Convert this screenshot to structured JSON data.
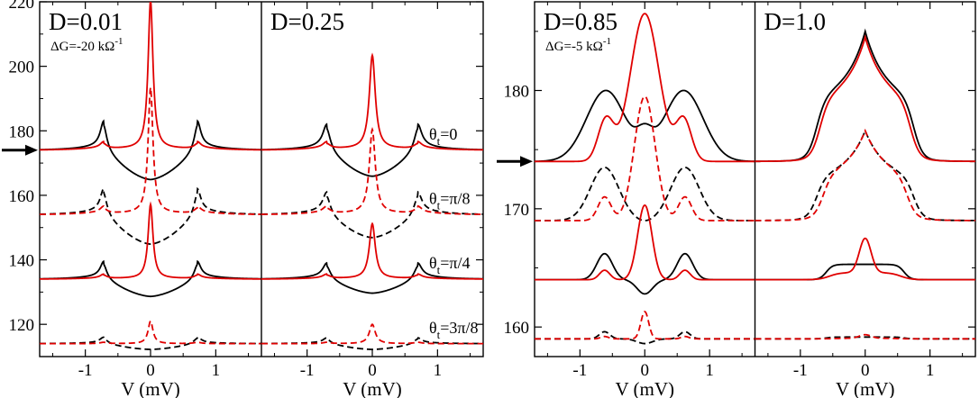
{
  "chart_data": [
    {
      "type": "line",
      "group": "left",
      "xlim": [
        -1.7,
        1.7
      ],
      "ylim": [
        110,
        220
      ],
      "xticks": [
        -1,
        0,
        1
      ],
      "xtick_labels": [
        "-1",
        "0",
        "1"
      ],
      "yticks": [
        120,
        140,
        160,
        180,
        200,
        220
      ],
      "ytick_labels": [
        "120",
        "140",
        "160",
        "180",
        "200",
        "220"
      ],
      "arrow_y": 174,
      "theta_labels": [
        {
          "base": "θ",
          "sub": "t",
          "rest": "=0",
          "y": 179
        },
        {
          "base": "θ",
          "sub": "t",
          "rest": "=π/8",
          "y": 159
        },
        {
          "base": "θ",
          "sub": "t",
          "rest": "=π/4",
          "y": 139
        },
        {
          "base": "θ",
          "sub": "t",
          "rest": "=3π/8",
          "y": 119
        }
      ],
      "panels": [
        {
          "title": "D=0.01",
          "annotation": {
            "prefix": "ΔG=-20 kΩ",
            "sup": "-1"
          },
          "xlabel": "V (mV)",
          "series": [
            {
              "name": "θt=0 black",
              "color": "#000000",
              "dash": false,
              "base": 174,
              "dip": -10,
              "peak": 7,
              "peak_pos": 0.72,
              "peak_w": 0.06,
              "zbp": 0,
              "zbp_w": 0.05,
              "wing": 2
            },
            {
              "name": "θt=0 red",
              "color": "#e00000",
              "dash": false,
              "base": 174,
              "dip": 0,
              "peak": 1.5,
              "peak_pos": 0.72,
              "peak_w": 0.06,
              "zbp": 46,
              "zbp_w": 0.045,
              "wing": 1
            },
            {
              "name": "θt=π/8 black",
              "color": "#000000",
              "dash": true,
              "base": 154,
              "dip": -10,
              "peak": 6,
              "peak_pos": 0.72,
              "peak_w": 0.06,
              "zbp": 0,
              "zbp_w": 0.05,
              "wing": 2
            },
            {
              "name": "θt=π/8 red",
              "color": "#e00000",
              "dash": true,
              "base": 154,
              "dip": 0,
              "peak": 1.5,
              "peak_pos": 0.72,
              "peak_w": 0.06,
              "zbp": 39,
              "zbp_w": 0.045,
              "wing": 1
            },
            {
              "name": "θt=π/4 black",
              "color": "#000000",
              "dash": false,
              "base": 134,
              "dip": -6,
              "peak": 4,
              "peak_pos": 0.72,
              "peak_w": 0.06,
              "zbp": 0,
              "zbp_w": 0.05,
              "wing": 1.5
            },
            {
              "name": "θt=π/4 red",
              "color": "#e00000",
              "dash": false,
              "base": 134,
              "dip": 0,
              "peak": 1,
              "peak_pos": 0.72,
              "peak_w": 0.06,
              "zbp": 23,
              "zbp_w": 0.045,
              "wing": 0.5
            },
            {
              "name": "θt=3π/8 black",
              "color": "#000000",
              "dash": true,
              "base": 114,
              "dip": -2,
              "peak": 1.5,
              "peak_pos": 0.72,
              "peak_w": 0.07,
              "zbp": 0,
              "zbp_w": 0.05,
              "wing": 0.5
            },
            {
              "name": "θt=3π/8 red",
              "color": "#e00000",
              "dash": true,
              "base": 114,
              "dip": 0,
              "peak": 0.4,
              "peak_pos": 0.72,
              "peak_w": 0.07,
              "zbp": 7,
              "zbp_w": 0.045,
              "wing": 0
            }
          ]
        },
        {
          "title": "D=0.25",
          "xlabel": "V (mV)",
          "series": [
            {
              "name": "θt=0 black",
              "color": "#000000",
              "dash": false,
              "base": 174,
              "dip": -9,
              "peak": 6,
              "peak_pos": 0.7,
              "peak_w": 0.07,
              "zbp": 0,
              "zbp_w": 0.06,
              "wing": 2
            },
            {
              "name": "θt=0 red",
              "color": "#e00000",
              "dash": false,
              "base": 174,
              "dip": 0,
              "peak": 1.5,
              "peak_pos": 0.7,
              "peak_w": 0.07,
              "zbp": 29,
              "zbp_w": 0.055,
              "wing": 1
            },
            {
              "name": "θt=π/8 black",
              "color": "#000000",
              "dash": true,
              "base": 154,
              "dip": -8,
              "peak": 5,
              "peak_pos": 0.7,
              "peak_w": 0.07,
              "zbp": 0,
              "zbp_w": 0.06,
              "wing": 2
            },
            {
              "name": "θt=π/8 red",
              "color": "#e00000",
              "dash": true,
              "base": 154,
              "dip": 0,
              "peak": 1.5,
              "peak_pos": 0.7,
              "peak_w": 0.07,
              "zbp": 26,
              "zbp_w": 0.055,
              "wing": 1
            },
            {
              "name": "θt=π/4 black",
              "color": "#000000",
              "dash": false,
              "base": 134,
              "dip": -5,
              "peak": 3.5,
              "peak_pos": 0.7,
              "peak_w": 0.07,
              "zbp": 0,
              "zbp_w": 0.06,
              "wing": 1.5
            },
            {
              "name": "θt=π/4 red",
              "color": "#e00000",
              "dash": false,
              "base": 134,
              "dip": 0,
              "peak": 1,
              "peak_pos": 0.7,
              "peak_w": 0.07,
              "zbp": 17,
              "zbp_w": 0.055,
              "wing": 0.5
            },
            {
              "name": "θt=3π/8 black",
              "color": "#000000",
              "dash": true,
              "base": 114,
              "dip": -2,
              "peak": 1.3,
              "peak_pos": 0.7,
              "peak_w": 0.07,
              "zbp": 0,
              "zbp_w": 0.06,
              "wing": 0.5
            },
            {
              "name": "θt=3π/8 red",
              "color": "#e00000",
              "dash": true,
              "base": 114,
              "dip": 0,
              "peak": 0.4,
              "peak_pos": 0.7,
              "peak_w": 0.07,
              "zbp": 6,
              "zbp_w": 0.055,
              "wing": 0
            }
          ]
        }
      ]
    },
    {
      "type": "line",
      "group": "right",
      "xlim": [
        -1.7,
        1.7
      ],
      "ylim": [
        157.5,
        187.5
      ],
      "xticks": [
        -1,
        0,
        1
      ],
      "xtick_labels": [
        "-1",
        "0",
        "1"
      ],
      "yticks": [
        160,
        170,
        180
      ],
      "ytick_labels": [
        "160",
        "170",
        "180"
      ],
      "arrow_y": 174,
      "panels": [
        {
          "title": "D=0.85",
          "annotation": {
            "prefix": "ΔG=-5 kΩ",
            "sup": "-1"
          },
          "xlabel": "V (mV)",
          "series": [
            {
              "name": "θt=0 black",
              "color": "#000000",
              "kind": "double",
              "dash": false,
              "base": 174,
              "h": 6,
              "pos": 0.6,
              "w": 0.3,
              "mid": 3.2
            },
            {
              "name": "θt=0 red",
              "color": "#e00000",
              "kind": "shoulder",
              "dash": false,
              "base": 174,
              "h": 12.5,
              "w": 0.22,
              "sh": 3.5,
              "sh_pos": 0.6,
              "sh_w": 0.12
            },
            {
              "name": "θt=π/8 black",
              "color": "#000000",
              "kind": "double",
              "dash": true,
              "base": 169,
              "h": 4.5,
              "pos": 0.62,
              "w": 0.22,
              "mid": 0
            },
            {
              "name": "θt=π/8 red",
              "color": "#e00000",
              "kind": "shoulder",
              "dash": true,
              "base": 169,
              "h": 10.5,
              "w": 0.16,
              "sh": 2,
              "sh_pos": 0.62,
              "sh_w": 0.1
            },
            {
              "name": "θt=π/4 black",
              "color": "#000000",
              "kind": "double",
              "dash": false,
              "base": 164,
              "h": 2.2,
              "pos": 0.62,
              "w": 0.12,
              "mid": -1.2
            },
            {
              "name": "θt=π/4 red",
              "color": "#e00000",
              "kind": "shoulder",
              "dash": false,
              "base": 164,
              "h": 6.3,
              "w": 0.11,
              "sh": 0.8,
              "sh_pos": 0.62,
              "sh_w": 0.08
            },
            {
              "name": "θt=3π/8 black",
              "color": "#000000",
              "kind": "double",
              "dash": true,
              "base": 159,
              "h": 0.6,
              "pos": 0.62,
              "w": 0.08,
              "mid": -0.4
            },
            {
              "name": "θt=3π/8 red",
              "color": "#e00000",
              "kind": "shoulder",
              "dash": true,
              "base": 159,
              "h": 2.3,
              "w": 0.06,
              "sh": 0.2,
              "sh_pos": 0.62,
              "sh_w": 0.06
            }
          ]
        },
        {
          "title": "D=1.0",
          "xlabel": "V (mV)",
          "series": [
            {
              "name": "θt=0 black",
              "color": "#000000",
              "kind": "dome",
              "dash": false,
              "base": 174,
              "h": 11,
              "w": 0.6
            },
            {
              "name": "θt=0 red",
              "color": "#e00000",
              "kind": "dome",
              "dash": false,
              "base": 174,
              "h": 10.5,
              "w": 0.55
            },
            {
              "name": "θt=π/8 black",
              "color": "#000000",
              "kind": "dome",
              "dash": true,
              "base": 169,
              "h": 7.6,
              "w": 0.6
            },
            {
              "name": "θt=π/8 red",
              "color": "#e00000",
              "kind": "dome",
              "dash": true,
              "base": 169,
              "h": 7.6,
              "w": 0.5
            },
            {
              "name": "θt=π/4 black",
              "color": "#000000",
              "kind": "plateau",
              "dash": false,
              "base": 164,
              "h": 1.3,
              "w": 0.6
            },
            {
              "name": "θt=π/4 red",
              "color": "#e00000",
              "kind": "plateau_peak",
              "dash": false,
              "base": 164,
              "h": 0.6,
              "w": 0.55,
              "peak": 2.9
            },
            {
              "name": "θt=3π/8 black",
              "color": "#000000",
              "kind": "plateau",
              "dash": true,
              "base": 159,
              "h": 0.15,
              "w": 0.6
            },
            {
              "name": "θt=3π/8 red",
              "color": "#e00000",
              "kind": "plateau_peak",
              "dash": true,
              "base": 159,
              "h": 0.05,
              "w": 0.5,
              "peak": 0.3
            }
          ]
        }
      ]
    }
  ]
}
